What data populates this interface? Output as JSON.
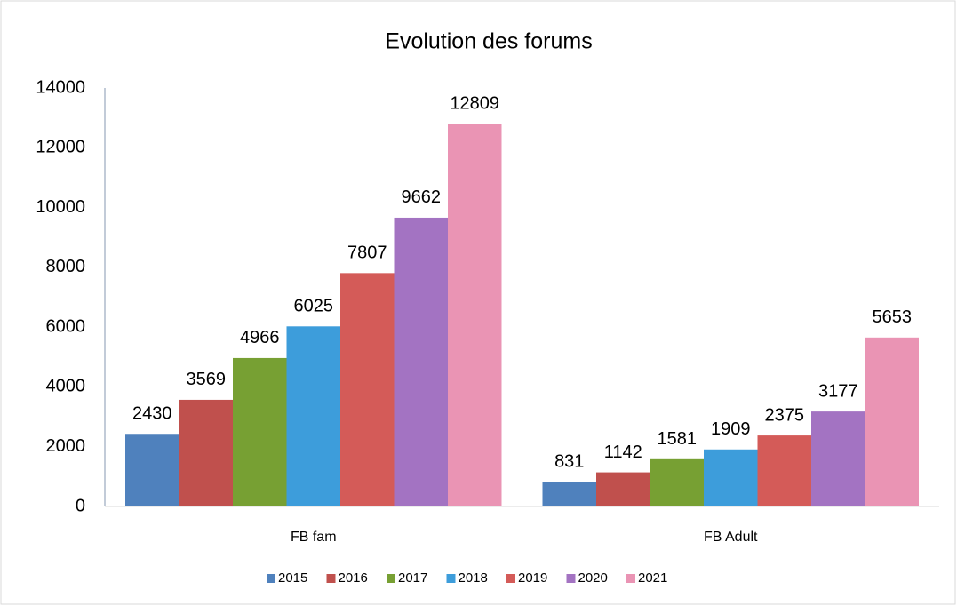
{
  "chart_data": {
    "type": "bar",
    "title": "Evolution des forums",
    "categories": [
      "FB fam",
      "FB Adult"
    ],
    "series": [
      {
        "name": "2015",
        "color": "#4f81bd",
        "values": [
          2430,
          831
        ]
      },
      {
        "name": "2016",
        "color": "#c0504d",
        "values": [
          3569,
          1142
        ]
      },
      {
        "name": "2017",
        "color": "#77a033",
        "values": [
          4966,
          1581
        ]
      },
      {
        "name": "2018",
        "color": "#3d9ddb",
        "values": [
          6025,
          1909
        ]
      },
      {
        "name": "2019",
        "color": "#d45b58",
        "values": [
          7807,
          2375
        ]
      },
      {
        "name": "2020",
        "color": "#a373c2",
        "values": [
          9662,
          3177
        ]
      },
      {
        "name": "2021",
        "color": "#ea94b4",
        "values": [
          12809,
          5653
        ]
      }
    ],
    "ylim": [
      0,
      14000
    ],
    "yticks": [
      0,
      2000,
      4000,
      6000,
      8000,
      10000,
      12000,
      14000
    ],
    "grid": false,
    "legend": "bottom"
  }
}
